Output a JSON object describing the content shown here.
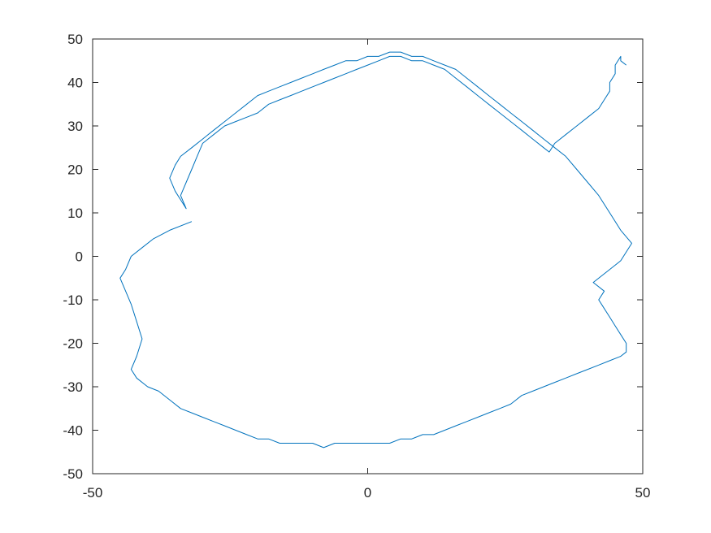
{
  "chart_data": {
    "type": "line",
    "title": "",
    "xlabel": "",
    "ylabel": "",
    "xlim": [
      -50,
      50
    ],
    "ylim": [
      -50,
      50
    ],
    "x_ticks": [
      -50,
      0,
      50
    ],
    "y_ticks": [
      -50,
      -40,
      -30,
      -20,
      -10,
      0,
      10,
      20,
      30,
      40,
      50
    ],
    "x_tick_labels": [
      "-50",
      "0",
      "50"
    ],
    "y_tick_labels": [
      "-50",
      "-40",
      "-30",
      "-20",
      "-10",
      "0",
      "10",
      "20",
      "30",
      "40",
      "50"
    ],
    "grid": false,
    "box": true,
    "series": [
      {
        "color": "#0072BD",
        "x": [
          -32,
          -36,
          -39,
          -41,
          -43,
          -44,
          -45,
          -44,
          -43,
          -42,
          -41,
          -42,
          -43,
          -42,
          -40,
          -38,
          -36,
          -34,
          -32,
          -30,
          -28,
          -26,
          -24,
          -22,
          -20,
          -18,
          -16,
          -14,
          -12,
          -10,
          -8,
          -6,
          -4,
          -2,
          0,
          2,
          4,
          6,
          8,
          10,
          12,
          14,
          16,
          18,
          20,
          22,
          24,
          26,
          28,
          30,
          32,
          34,
          36,
          38,
          40,
          42,
          44,
          46,
          47,
          47,
          46,
          45,
          44,
          43,
          42,
          43,
          41,
          44,
          46,
          47,
          48,
          46,
          44,
          42,
          40,
          38,
          36,
          34,
          32,
          30,
          28,
          26,
          24,
          22,
          20,
          18,
          16,
          14,
          12,
          10,
          8,
          6,
          4,
          2,
          0,
          -2,
          -4,
          -6,
          -8,
          -10,
          -12,
          -14,
          -16,
          -18,
          -20,
          -22,
          -24,
          -26,
          -28,
          -30,
          -32,
          -34,
          -35,
          -36,
          -35,
          -34,
          -33,
          -34,
          -33,
          -32,
          -31,
          -30,
          -28,
          -26,
          -24,
          -22,
          -20,
          -18,
          -16,
          -14,
          -12,
          -10,
          -8,
          -6,
          -4,
          -2,
          0,
          2,
          4,
          6,
          8,
          10,
          12,
          14,
          16,
          18,
          20,
          22,
          24,
          26,
          28,
          30,
          32,
          33,
          34,
          36,
          38,
          40,
          42,
          43,
          44,
          44,
          45,
          45,
          46,
          46,
          47
        ],
        "y": [
          8,
          6,
          4,
          2,
          0,
          -3,
          -5,
          -8,
          -11,
          -15,
          -19,
          -23,
          -26,
          -28,
          -30,
          -31,
          -33,
          -35,
          -36,
          -37,
          -38,
          -39,
          -40,
          -41,
          -42,
          -42,
          -43,
          -43,
          -43,
          -43,
          -44,
          -43,
          -43,
          -43,
          -43,
          -43,
          -43,
          -42,
          -42,
          -41,
          -41,
          -40,
          -39,
          -38,
          -37,
          -36,
          -35,
          -34,
          -32,
          -31,
          -30,
          -29,
          -28,
          -27,
          -26,
          -25,
          -24,
          -23,
          -22,
          -20,
          -18,
          -16,
          -14,
          -12,
          -10,
          -8,
          -6,
          -3,
          -1,
          1,
          3,
          6,
          10,
          14,
          17,
          20,
          23,
          25,
          27,
          29,
          31,
          33,
          35,
          37,
          39,
          41,
          43,
          44,
          45,
          46,
          46,
          47,
          47,
          46,
          46,
          45,
          45,
          44,
          43,
          42,
          41,
          40,
          39,
          38,
          37,
          35,
          33,
          31,
          29,
          27,
          25,
          23,
          21,
          18,
          15,
          13,
          11,
          14,
          17,
          20,
          23,
          26,
          28,
          30,
          31,
          32,
          33,
          35,
          36,
          37,
          38,
          39,
          40,
          41,
          42,
          43,
          44,
          45,
          46,
          46,
          45,
          45,
          44,
          43,
          41,
          39,
          37,
          35,
          33,
          31,
          29,
          27,
          25,
          24,
          26,
          28,
          30,
          32,
          34,
          36,
          38,
          40,
          42,
          44,
          46,
          45,
          44
        ]
      }
    ]
  }
}
